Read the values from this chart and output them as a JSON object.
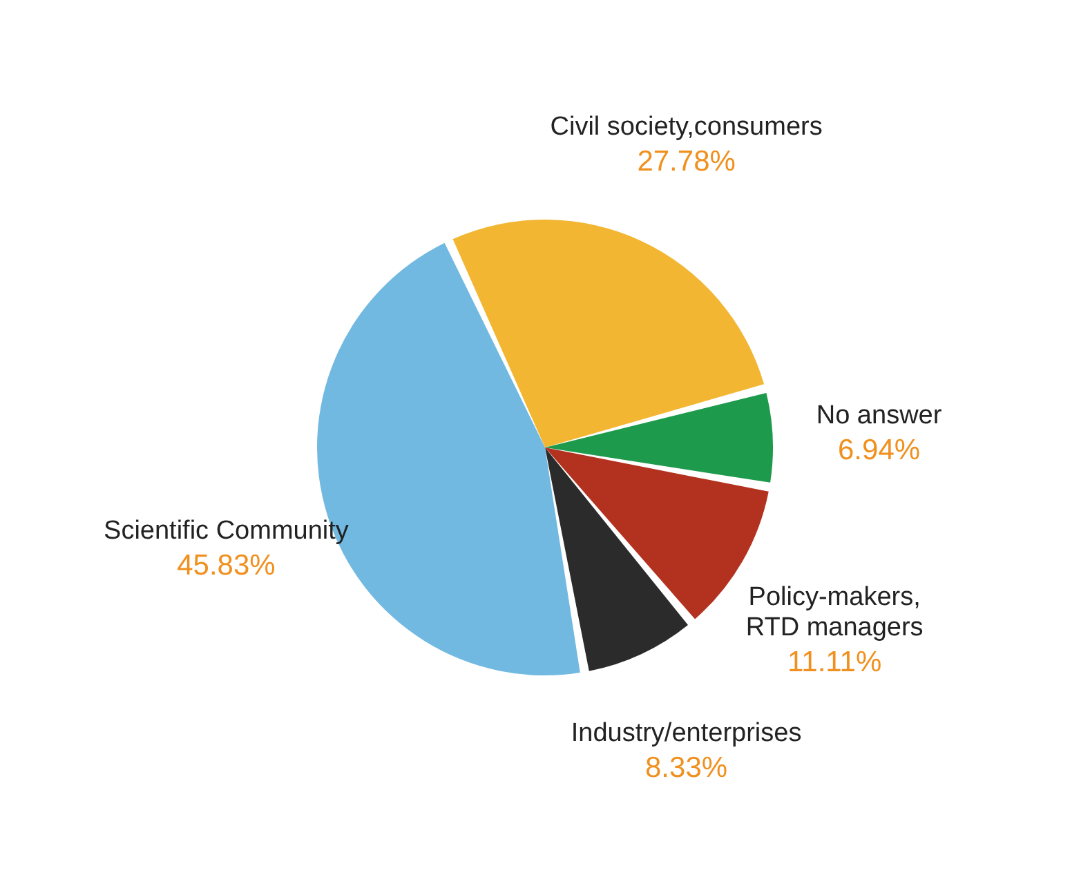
{
  "chart_data": {
    "type": "pie",
    "categories": [
      "Civil society,consumers",
      "No answer",
      "Policy-makers, RTD managers",
      "Industry/enterprises",
      "Scientific Community"
    ],
    "values": [
      27.78,
      6.94,
      11.11,
      8.33,
      45.83
    ],
    "value_labels": [
      "27.78%",
      "6.94%",
      "11.11%",
      "8.33%",
      "45.83%"
    ],
    "colors": [
      "#f2b632",
      "#1e9a4c",
      "#b3321f",
      "#2b2b2b",
      "#72b9e2"
    ]
  }
}
